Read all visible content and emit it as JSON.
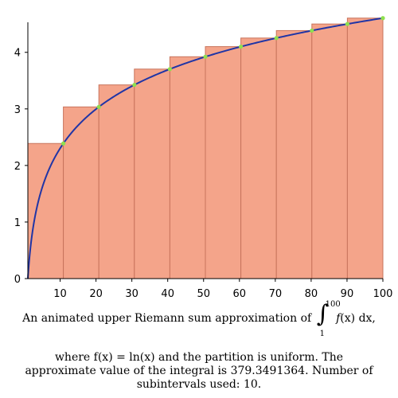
{
  "chart_data": {
    "type": "area",
    "function_label": "ln(x)",
    "x": [
      1,
      10.9,
      20.8,
      30.7,
      40.6,
      50.5,
      60.4,
      70.3,
      80.2,
      90.1,
      100
    ],
    "bars": [
      {
        "x0": 1,
        "x1": 10.9,
        "height": 2.3888
      },
      {
        "x0": 10.9,
        "x1": 20.8,
        "height": 3.035
      },
      {
        "x0": 20.8,
        "x1": 30.7,
        "height": 3.4243
      },
      {
        "x0": 30.7,
        "x1": 40.6,
        "height": 3.7038
      },
      {
        "x0": 40.6,
        "x1": 50.5,
        "height": 3.922
      },
      {
        "x0": 50.5,
        "x1": 60.4,
        "height": 4.101
      },
      {
        "x0": 60.4,
        "x1": 70.3,
        "height": 4.2528
      },
      {
        "x0": 70.3,
        "x1": 80.2,
        "height": 4.3845
      },
      {
        "x0": 80.2,
        "x1": 90.1,
        "height": 4.5009
      },
      {
        "x0": 90.1,
        "x1": 100,
        "height": 4.6052
      }
    ],
    "points": [
      {
        "x": 10.9,
        "y": 2.3888
      },
      {
        "x": 20.8,
        "y": 3.035
      },
      {
        "x": 30.7,
        "y": 3.4243
      },
      {
        "x": 40.6,
        "y": 3.7038
      },
      {
        "x": 50.5,
        "y": 3.922
      },
      {
        "x": 60.4,
        "y": 4.101
      },
      {
        "x": 70.3,
        "y": 4.2528
      },
      {
        "x": 80.2,
        "y": 4.3845
      },
      {
        "x": 90.1,
        "y": 4.5009
      },
      {
        "x": 100,
        "y": 4.6052
      }
    ],
    "xlim": [
      1,
      100
    ],
    "ylim": [
      0,
      4.7
    ],
    "xticks": [
      10,
      20,
      30,
      40,
      50,
      60,
      70,
      80,
      90,
      100
    ],
    "yticks": [
      0,
      1,
      2,
      3,
      4
    ],
    "title": "",
    "xlabel": "",
    "ylabel": "",
    "grid": false,
    "colors": {
      "bar_fill": "#f4a48a",
      "bar_edge": "#c8745c",
      "curve": "#2035a6",
      "points": "#8ee04f"
    }
  },
  "caption": {
    "line1_before": "An animated upper Riemann sum approximation of",
    "integral_upper": "100",
    "integral_lower": "1",
    "integrand_f": "f",
    "integrand_x": "(x) dx,",
    "line2": "where f(x) = ln(x) and the partition is uniform.  The",
    "line3": "approximate value of the integral is 379.3491364.  Number of",
    "line4": "subintervals used: 10."
  }
}
